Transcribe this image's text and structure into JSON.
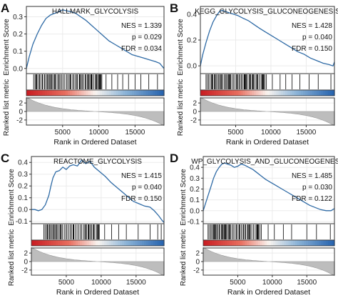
{
  "chart_data": [
    {
      "type": "line",
      "panel_letter": "A",
      "title": "HALLMARK_GLYCOLYSIS",
      "ylabel_top": "Enrichment Score",
      "ylabel_bottom": "Ranked list metric",
      "xlabel": "Rank in Ordered Dataset",
      "xticks": [
        5000,
        10000,
        15000
      ],
      "xlim": [
        0,
        19000
      ],
      "es_yticks": [
        0.0,
        0.1,
        0.2,
        0.3
      ],
      "es_ylim": [
        -0.03,
        0.36
      ],
      "metric_yticks": [
        2,
        0,
        -2
      ],
      "metric_ylim": [
        -3.2,
        3.2
      ],
      "stats": {
        "nes": "NES = 1.339",
        "p": "p = 0.029",
        "fdr": "FDR = 0.034"
      },
      "es_curve": {
        "x": [
          0,
          400,
          900,
          1500,
          2100,
          2700,
          3300,
          3900,
          4500,
          5000,
          5500,
          6100,
          6800,
          7500,
          8200,
          9000,
          9800,
          10600,
          11400,
          12200,
          13000,
          13800,
          14600,
          15400,
          16200,
          17000,
          17800,
          18400,
          18800,
          19000
        ],
        "y": [
          0,
          0.07,
          0.14,
          0.2,
          0.25,
          0.29,
          0.31,
          0.32,
          0.33,
          0.34,
          0.335,
          0.33,
          0.32,
          0.3,
          0.28,
          0.25,
          0.22,
          0.19,
          0.16,
          0.14,
          0.12,
          0.1,
          0.08,
          0.07,
          0.06,
          0.05,
          0.04,
          0.03,
          0.01,
          0
        ]
      },
      "hits_dense": [
        1000,
        10500
      ],
      "hits_sparse": [
        11000,
        11800,
        12600,
        13300,
        14100,
        15000,
        15800,
        16900,
        18100
      ]
    },
    {
      "type": "line",
      "panel_letter": "B",
      "title": "KEGG_GLYCOLYSIS_GLUCONEOGENESIS",
      "ylabel_top": "Enrichment Score",
      "ylabel_bottom": "Ranked list metric",
      "xlabel": "Rank in Ordered Dataset",
      "xticks": [
        5000,
        10000,
        15000
      ],
      "xlim": [
        0,
        19000
      ],
      "es_yticks": [
        0.0,
        0.2,
        0.4
      ],
      "es_ylim": [
        -0.06,
        0.46
      ],
      "metric_yticks": [
        2,
        0,
        -2
      ],
      "metric_ylim": [
        -3.2,
        3.2
      ],
      "stats": {
        "nes": "NES = 1.428",
        "p": "p = 0.040",
        "fdr": "FDR = 0.150"
      },
      "es_curve": {
        "x": [
          0,
          300,
          800,
          1300,
          1800,
          2300,
          2700,
          3100,
          3600,
          4100,
          4700,
          5300,
          6000,
          6800,
          7600,
          8400,
          9300,
          10200,
          11100,
          12000,
          12900,
          13800,
          14700,
          15600,
          16500,
          17400,
          18200,
          18800,
          19000
        ],
        "y": [
          0,
          0.08,
          0.18,
          0.27,
          0.34,
          0.39,
          0.42,
          0.43,
          0.42,
          0.41,
          0.4,
          0.39,
          0.37,
          0.35,
          0.32,
          0.29,
          0.26,
          0.23,
          0.2,
          0.17,
          0.14,
          0.11,
          0.09,
          0.06,
          0.04,
          0.02,
          0.01,
          0.0,
          0.03
        ]
      },
      "hits_dense": [
        800,
        9500
      ],
      "hits_sparse": [
        10200,
        11300,
        12100,
        13000,
        14100,
        15400,
        16700,
        18500
      ]
    },
    {
      "type": "line",
      "panel_letter": "C",
      "title": "REACTOME_GLYCOLYSIS",
      "ylabel_top": "Enrichment Score",
      "ylabel_bottom": "Ranked list metric",
      "xlabel": "Rank in Ordered Dataset",
      "xticks": [
        5000,
        10000,
        15000
      ],
      "xlim": [
        0,
        19000
      ],
      "es_yticks": [
        -0.1,
        0.0,
        0.1,
        0.2,
        0.3,
        0.4
      ],
      "es_ylim": [
        -0.12,
        0.45
      ],
      "metric_yticks": [
        2,
        0,
        -2
      ],
      "metric_ylim": [
        -3.2,
        3.2
      ],
      "stats": {
        "nes": "NES = 1.415",
        "p": "p = 0.040",
        "fdr": "FDR = 0.150"
      },
      "es_curve": {
        "x": [
          0,
          500,
          1000,
          1500,
          2000,
          2500,
          2800,
          3100,
          3500,
          4000,
          4500,
          5000,
          5500,
          6000,
          6600,
          7200,
          7800,
          8400,
          9000,
          9800,
          10600,
          11400,
          12200,
          13000,
          13800,
          14600,
          15400,
          16200,
          17000,
          17600,
          18200,
          18700,
          19000
        ],
        "y": [
          0,
          0.0,
          -0.01,
          0.0,
          0.04,
          0.12,
          0.2,
          0.27,
          0.32,
          0.33,
          0.36,
          0.34,
          0.37,
          0.38,
          0.37,
          0.42,
          0.39,
          0.41,
          0.36,
          0.32,
          0.28,
          0.23,
          0.19,
          0.15,
          0.11,
          0.07,
          0.05,
          0.03,
          0.02,
          -0.01,
          -0.05,
          -0.09,
          -0.11
        ]
      },
      "hits_dense": [
        1800,
        9800
      ],
      "hits_sparse": [
        10500,
        11500,
        12500,
        13600,
        15300,
        17000,
        18100,
        18600
      ]
    },
    {
      "type": "line",
      "panel_letter": "D",
      "title": "WP_GLYCOLYSIS_AND_GLUCONEOGENESIS",
      "ylabel_top": "Enrichment Score",
      "ylabel_bottom": "Ranked list metric",
      "xlabel": "Rank in Ordered Dataset",
      "xticks": [
        5000,
        10000,
        15000
      ],
      "xlim": [
        0,
        19000
      ],
      "es_yticks": [
        -0.1,
        0.0,
        0.1,
        0.2,
        0.3,
        0.4
      ],
      "es_ylim": [
        -0.12,
        0.5
      ],
      "metric_yticks": [
        2,
        0,
        -2
      ],
      "metric_ylim": [
        -3.2,
        3.2
      ],
      "stats": {
        "nes": "NES = 1.485",
        "p": "p = 0.030",
        "fdr": "FDR = 0.122"
      },
      "es_curve": {
        "x": [
          0,
          300,
          700,
          1100,
          1500,
          1900,
          2300,
          2700,
          3100,
          3500,
          4000,
          4500,
          5000,
          5500,
          6000,
          6600,
          7200,
          7800,
          8400,
          9000,
          9800,
          10600,
          11400,
          12200,
          13000,
          13800,
          14600,
          15400,
          16200,
          17000,
          17800,
          18500,
          19000
        ],
        "y": [
          0,
          0.06,
          0.14,
          0.22,
          0.3,
          0.36,
          0.4,
          0.43,
          0.44,
          0.43,
          0.42,
          0.4,
          0.41,
          0.43,
          0.42,
          0.4,
          0.38,
          0.35,
          0.32,
          0.29,
          0.26,
          0.23,
          0.2,
          0.17,
          0.14,
          0.11,
          0.08,
          0.05,
          0.03,
          0.01,
          0.0,
          0.0,
          0.02
        ]
      },
      "hits_dense": [
        700,
        8500
      ],
      "hits_sparse": [
        9400,
        10300,
        11600,
        12800,
        15000,
        16400,
        18400
      ]
    }
  ]
}
